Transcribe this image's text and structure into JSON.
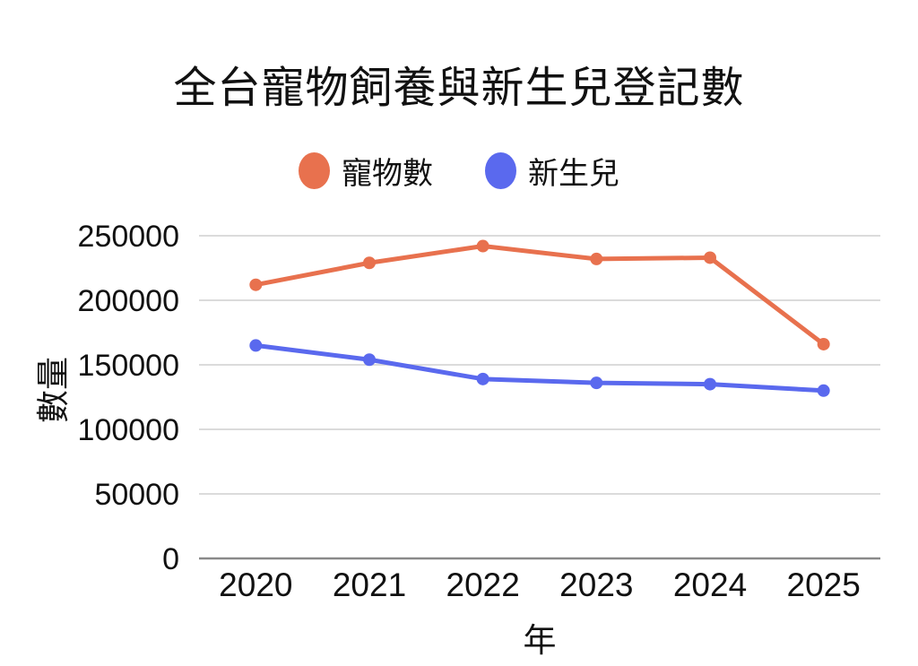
{
  "page": {
    "background": "#ffffff",
    "text_color": "#111111"
  },
  "chart_data": {
    "type": "line",
    "title": "全台寵物飼養與新生兒登記數",
    "xlabel": "年",
    "ylabel": "數量",
    "categories": [
      "2020",
      "2021",
      "2022",
      "2023",
      "2024",
      "2025"
    ],
    "series": [
      {
        "name": "寵物數",
        "color": "#E8714E",
        "values": [
          212000,
          229000,
          242000,
          232000,
          233000,
          166000
        ]
      },
      {
        "name": "新生兒",
        "color": "#5A69EE",
        "values": [
          165000,
          154000,
          139000,
          136000,
          135000,
          130000
        ]
      }
    ],
    "ylim": [
      0,
      250000
    ],
    "yticks": [
      0,
      50000,
      100000,
      150000,
      200000,
      250000
    ],
    "ytick_labels": [
      "0",
      "50000",
      "100000",
      "150000",
      "200000",
      "250000"
    ],
    "grid": true,
    "legend_position": "top",
    "style": {
      "gridline_color": "#DBDBDB",
      "zeroline_color": "#8A8A8A",
      "line_width": 5,
      "point_radius": 7
    }
  }
}
